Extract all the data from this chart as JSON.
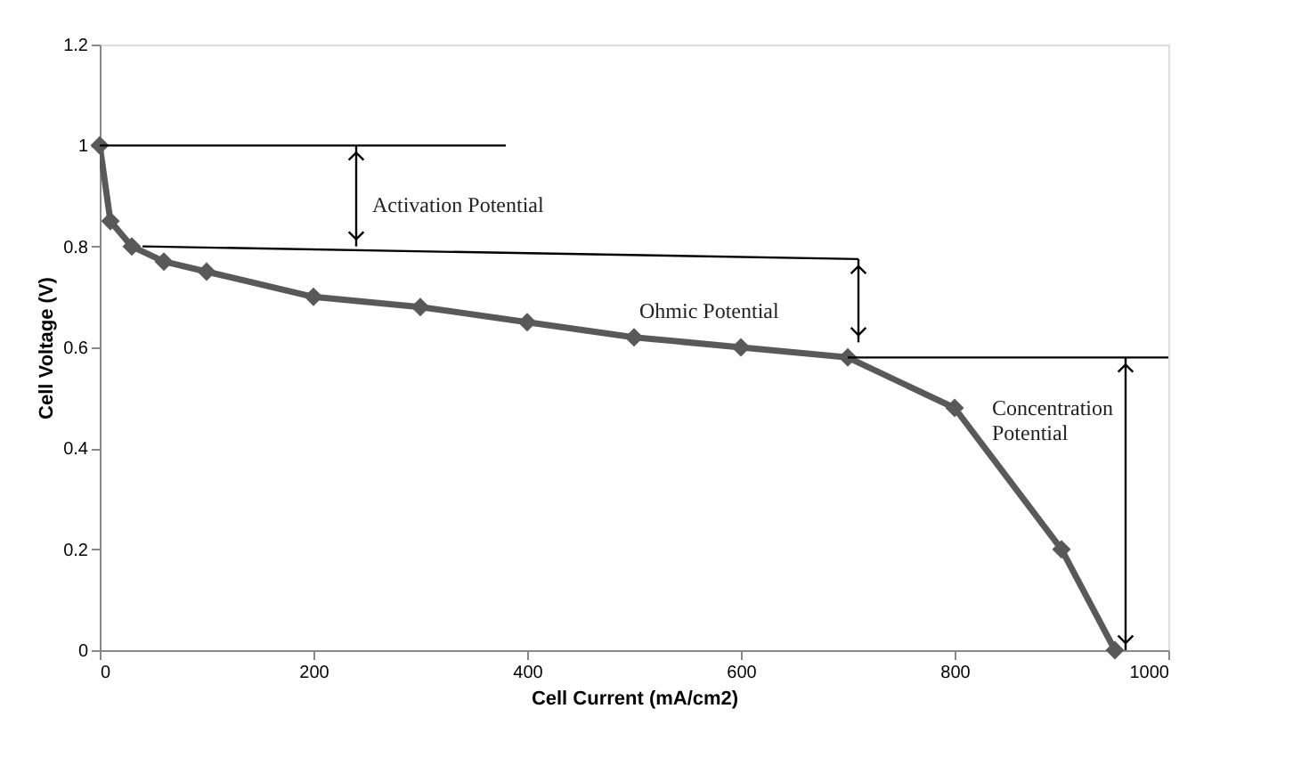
{
  "chart_data": {
    "type": "line",
    "xlabel": "Cell Current (mA/cm2)",
    "ylabel": "Cell Voltage (V)",
    "xlim": [
      0,
      1000
    ],
    "xticks": [
      0,
      200,
      400,
      600,
      800,
      1000
    ],
    "ylim": [
      0,
      1.2
    ],
    "yticks": [
      0,
      0.2,
      0.4,
      0.6,
      0.8,
      1,
      1.2
    ],
    "grid": false,
    "line_style": "solid",
    "series": [
      {
        "x": [
          0,
          10,
          30,
          60,
          100,
          200,
          300,
          400,
          500,
          600,
          700,
          800,
          900,
          950
        ],
        "values": [
          1.0,
          0.85,
          0.8,
          0.77,
          0.75,
          0.7,
          0.68,
          0.65,
          0.62,
          0.6,
          0.58,
          0.48,
          0.2,
          0.0
        ],
        "color": "#595959",
        "marker": "diamond"
      },
      {
        "type": "line",
        "x": [
          0,
          380
        ],
        "values": [
          1.0,
          1.0
        ],
        "color": "#000000",
        "marker": "none"
      },
      {
        "type": "line",
        "x": [
          40,
          710
        ],
        "values": [
          0.8,
          0.775
        ],
        "color": "#000000",
        "marker": "none"
      },
      {
        "type": "line",
        "x": [
          700,
          1000
        ],
        "values": [
          0.58,
          0.58
        ],
        "color": "#000000",
        "marker": "none"
      },
      {
        "type": "line",
        "x": [
          240,
          240
        ],
        "values": [
          1.0,
          0.8
        ],
        "color": "#000000",
        "marker": "none"
      },
      {
        "type": "line",
        "x": [
          710,
          710
        ],
        "values": [
          0.775,
          0.61
        ],
        "color": "#000000",
        "marker": "none"
      },
      {
        "type": "line",
        "x": [
          960,
          960
        ],
        "values": [
          0.58,
          0.0
        ],
        "color": "#000000",
        "marker": "none"
      }
    ],
    "annotations": [
      "Activation Potential",
      "Ohmic Potential",
      "Concentration\nPotential"
    ]
  }
}
